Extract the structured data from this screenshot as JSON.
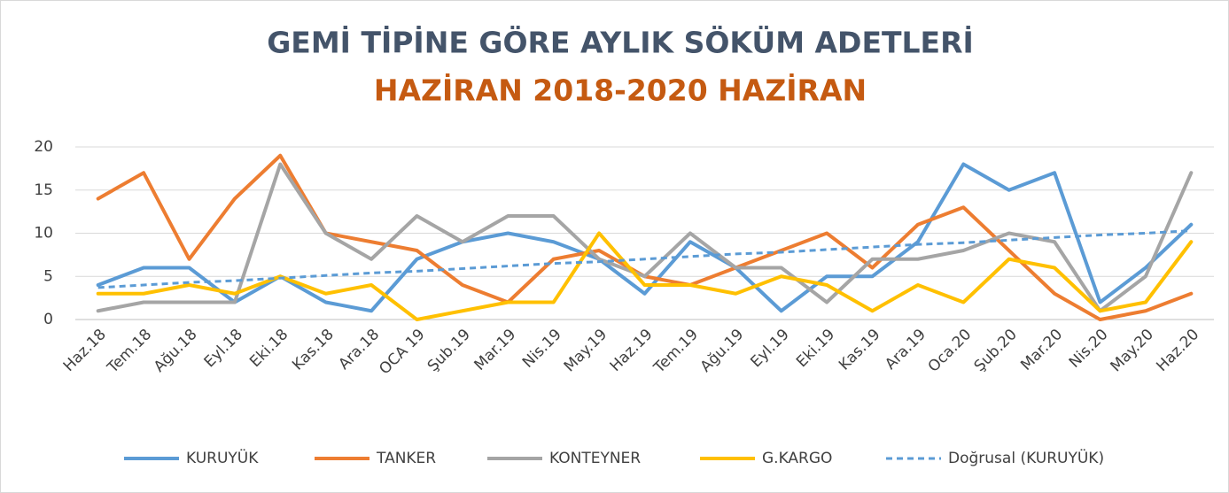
{
  "chart_data": {
    "type": "line",
    "title": "GEMİ TİPİNE GÖRE AYLIK SÖKÜM ADETLERİ",
    "subtitle": "HAZİRAN 2018-2020 HAZİRAN",
    "categories": [
      "Haz.18",
      "Tem.18",
      "Ağu.18",
      "Eyl.18",
      "Eki.18",
      "Kas.18",
      "Ara.18",
      "OCA 19",
      "Şub.19",
      "Mar.19",
      "Nis.19",
      "May.19",
      "Haz.19",
      "Tem.19",
      "Ağu.19",
      "Eyl.19",
      "Eki.19",
      "Kas.19",
      "Ara.19",
      "Oca.20",
      "Şub.20",
      "Mar.20",
      "Nis.20",
      "May.20",
      "Haz.20"
    ],
    "series": [
      {
        "name": "KURUYÜK",
        "color": "#5b9bd5",
        "values": [
          4,
          6,
          6,
          2,
          5,
          2,
          1,
          7,
          9,
          10,
          9,
          7,
          3,
          9,
          6,
          1,
          5,
          5,
          9,
          18,
          15,
          17,
          2,
          6,
          11
        ]
      },
      {
        "name": "TANKER",
        "color": "#ed7d31",
        "values": [
          14,
          17,
          7,
          14,
          19,
          10,
          9,
          8,
          4,
          2,
          7,
          8,
          5,
          4,
          6,
          8,
          10,
          6,
          11,
          13,
          8,
          3,
          0,
          1,
          3
        ]
      },
      {
        "name": "KONTEYNER",
        "color": "#a5a5a5",
        "values": [
          1,
          2,
          2,
          2,
          18,
          10,
          7,
          12,
          9,
          12,
          12,
          7,
          5,
          10,
          6,
          6,
          2,
          7,
          7,
          8,
          10,
          9,
          1,
          5,
          17
        ]
      },
      {
        "name": "G.KARGO",
        "color": "#ffc000",
        "values": [
          3,
          3,
          4,
          3,
          5,
          3,
          4,
          0,
          1,
          2,
          2,
          10,
          4,
          4,
          3,
          5,
          4,
          1,
          4,
          2,
          7,
          6,
          1,
          2,
          9
        ]
      },
      {
        "name": "Doğrusal (KURUYÜK)",
        "color": "#5b9bd5",
        "dashed": true,
        "values": [
          3.7,
          4.0,
          4.3,
          4.5,
          4.8,
          5.1,
          5.4,
          5.6,
          5.9,
          6.2,
          6.5,
          6.7,
          7.0,
          7.3,
          7.6,
          7.8,
          8.1,
          8.4,
          8.7,
          8.9,
          9.2,
          9.5,
          9.8,
          10.0,
          10.3
        ]
      }
    ],
    "ylim": [
      0,
      20
    ],
    "yticks": [
      0,
      5,
      10,
      15,
      20
    ],
    "grid": true,
    "legend": "bottom"
  }
}
